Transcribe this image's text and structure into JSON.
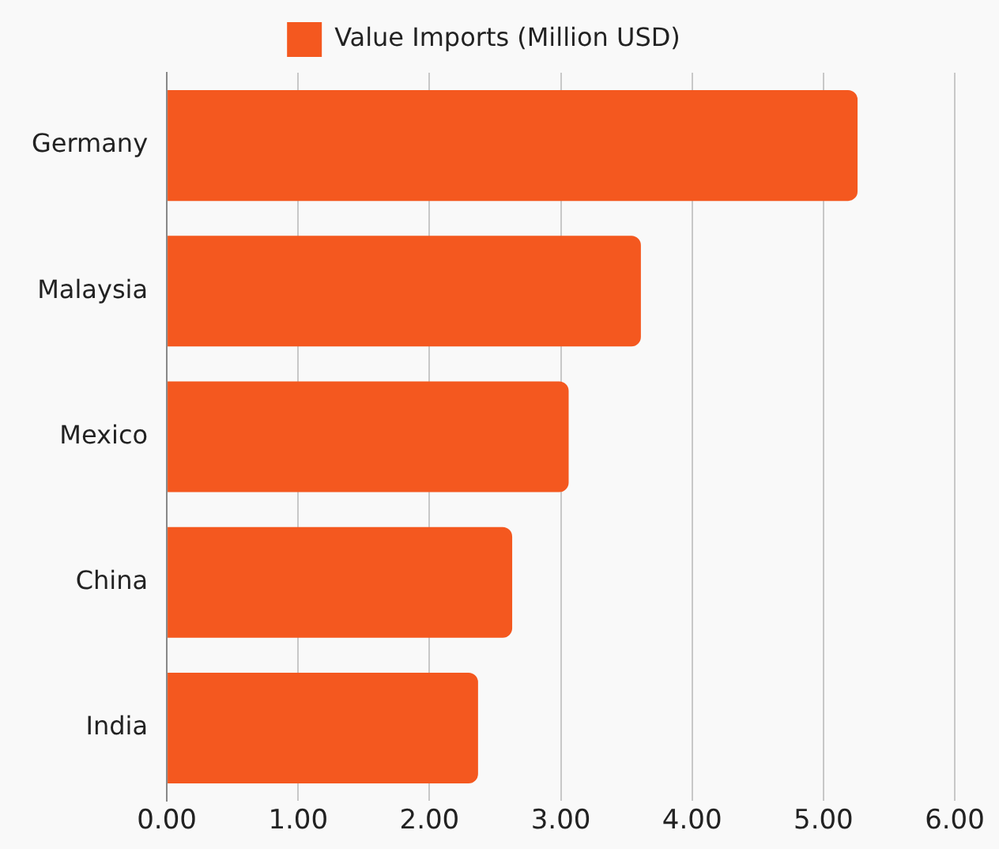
{
  "chart_data": {
    "type": "bar",
    "orientation": "horizontal",
    "categories": [
      "Germany",
      "Malaysia",
      "Mexico",
      "China",
      "India"
    ],
    "series": [
      {
        "name": "Value Imports (Million USD)",
        "color": "#f4581f",
        "values": [
          5.26,
          3.61,
          3.06,
          2.63,
          2.37
        ]
      }
    ],
    "xlim": [
      0,
      6
    ],
    "xticks": [
      {
        "value": 0,
        "label": "0.00"
      },
      {
        "value": 1,
        "label": "1.00"
      },
      {
        "value": 2,
        "label": "2.00"
      },
      {
        "value": 3,
        "label": "3.00"
      },
      {
        "value": 4,
        "label": "4.00"
      },
      {
        "value": 5,
        "label": "5.00"
      },
      {
        "value": 6,
        "label": "6.00"
      }
    ],
    "grid": "x",
    "legend": "top"
  }
}
